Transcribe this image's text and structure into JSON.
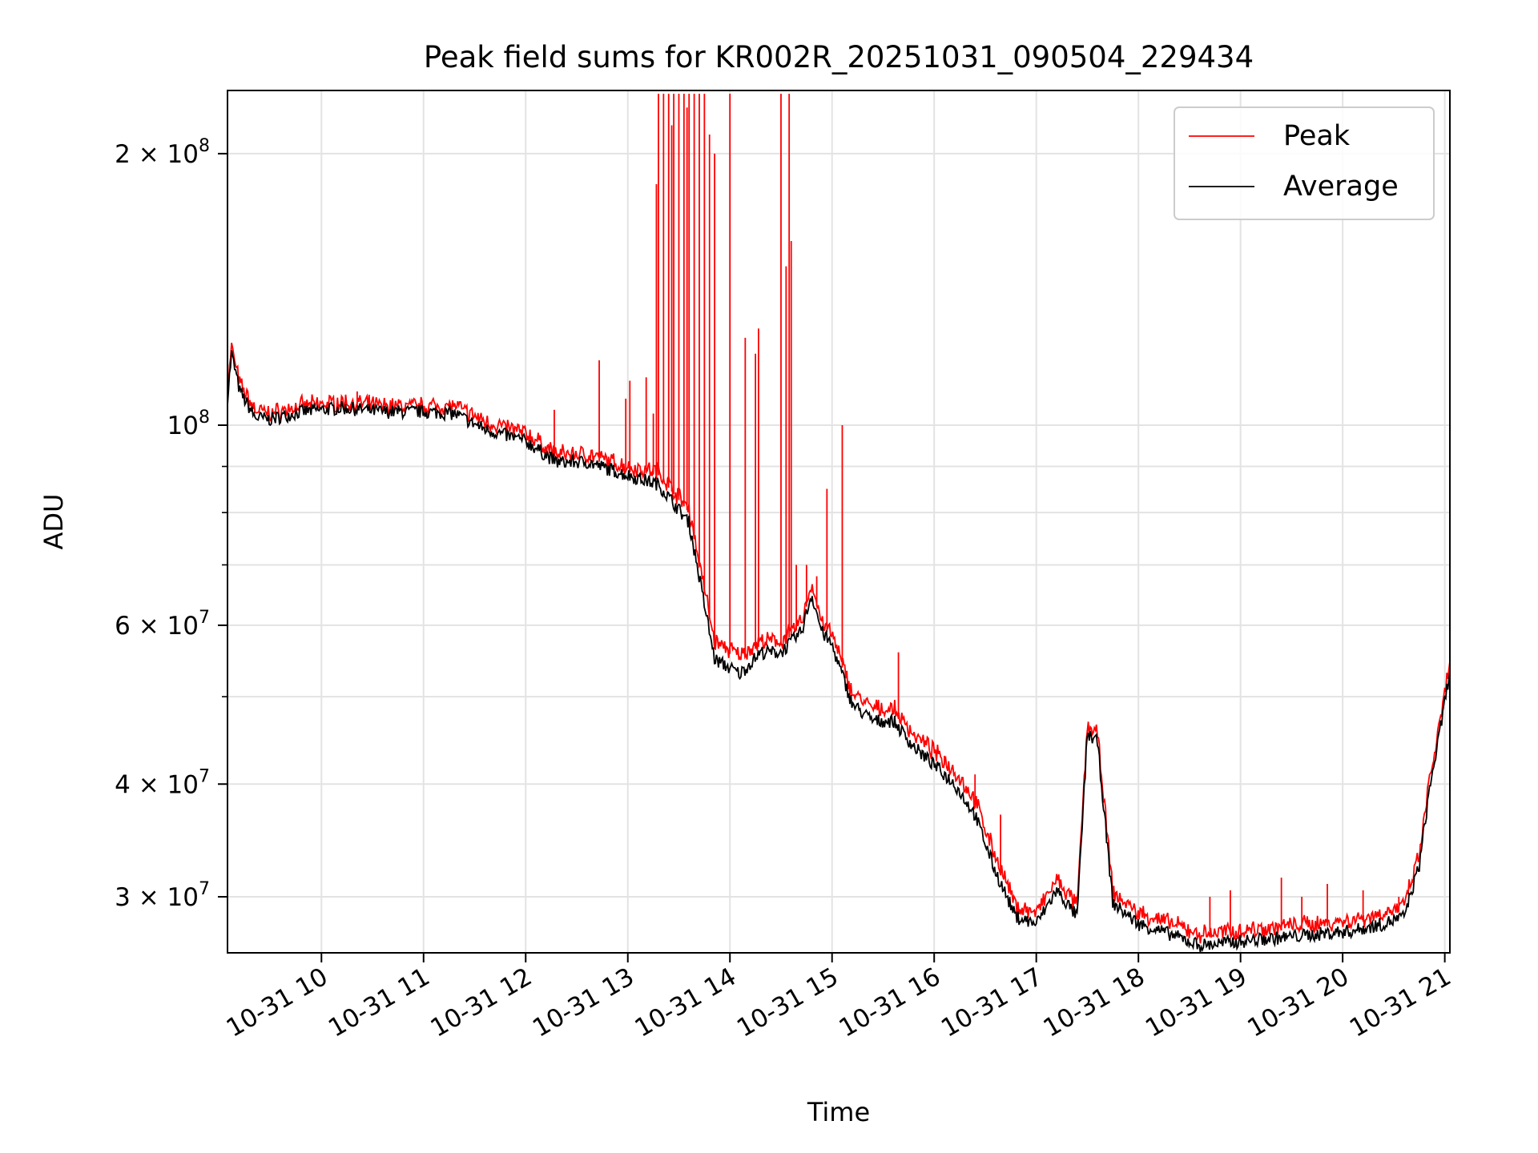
{
  "chart_data": {
    "type": "line",
    "title": "Peak field sums for KR002R_20251031_090504_229434",
    "xlabel": "Time",
    "ylabel": "ADU",
    "yscale": "log",
    "xlim": [
      9.08,
      21.05
    ],
    "ylim": [
      26000000,
      235000000
    ],
    "grid": true,
    "legend_position": "top-right",
    "x_ticks": [
      {
        "value": 10,
        "label": "10-31 10"
      },
      {
        "value": 11,
        "label": "10-31 11"
      },
      {
        "value": 12,
        "label": "10-31 12"
      },
      {
        "value": 13,
        "label": "10-31 13"
      },
      {
        "value": 14,
        "label": "10-31 14"
      },
      {
        "value": 15,
        "label": "10-31 15"
      },
      {
        "value": 16,
        "label": "10-31 16"
      },
      {
        "value": 17,
        "label": "10-31 17"
      },
      {
        "value": 18,
        "label": "10-31 18"
      },
      {
        "value": 19,
        "label": "10-31 19"
      },
      {
        "value": 20,
        "label": "10-31 20"
      },
      {
        "value": 21,
        "label": "10-31 21"
      }
    ],
    "y_ticks": [
      {
        "value": 30000000,
        "mant": "3",
        "exp": "7"
      },
      {
        "value": 40000000,
        "mant": "4",
        "exp": "7"
      },
      {
        "value": 60000000,
        "mant": "6",
        "exp": "7"
      },
      {
        "value": 100000000,
        "mant": "",
        "exp": "8"
      },
      {
        "value": 200000000,
        "mant": "2",
        "exp": "8"
      }
    ],
    "y_minor_ticks": [
      50000000,
      70000000,
      80000000,
      90000000
    ],
    "series": [
      {
        "name": "Peak",
        "color": "#ff0000",
        "x": [
          9.08,
          9.12,
          9.2,
          9.35,
          9.5,
          9.8,
          10.2,
          10.6,
          11,
          11.3,
          11.6,
          12.0,
          12.3,
          12.6,
          13.0,
          13.3,
          13.6,
          13.85,
          14.1,
          14.3,
          14.5,
          14.7,
          14.8,
          14.9,
          15.0,
          15.2,
          15.4,
          15.6,
          15.8,
          16.0,
          16.2,
          16.4,
          16.6,
          16.8,
          17.0,
          17.2,
          17.4,
          17.5,
          17.6,
          17.75,
          18.0,
          18.3,
          18.6,
          18.9,
          19.2,
          19.5,
          19.8,
          20.1,
          20.4,
          20.6,
          20.75,
          20.85,
          20.95,
          21.05
        ],
        "values": [
          108000000,
          121000000,
          110000000,
          103000000,
          102000000,
          104000000,
          105000000,
          104000000,
          104000000,
          104000000,
          100000000,
          97000000,
          92000000,
          92000000,
          89000000,
          88000000,
          80000000,
          57000000,
          55000000,
          57000000,
          57000000,
          60000000,
          66000000,
          60000000,
          58000000,
          50000000,
          48000000,
          48000000,
          45000000,
          43000000,
          41000000,
          38000000,
          33000000,
          29000000,
          28500000,
          31000000,
          29000000,
          46000000,
          45000000,
          30000000,
          28500000,
          27800000,
          27000000,
          27200000,
          27400000,
          27600000,
          27800000,
          28000000,
          28500000,
          29000000,
          33000000,
          40000000,
          46000000,
          54000000
        ]
      },
      {
        "name": "Average",
        "color": "#000000",
        "x": [
          9.08,
          9.12,
          9.2,
          9.35,
          9.5,
          9.8,
          10.2,
          10.6,
          11,
          11.3,
          11.6,
          12.0,
          12.3,
          12.6,
          13.0,
          13.3,
          13.6,
          13.85,
          14.1,
          14.3,
          14.5,
          14.7,
          14.8,
          14.9,
          15.0,
          15.2,
          15.4,
          15.6,
          15.8,
          16.0,
          16.2,
          16.4,
          16.6,
          16.8,
          17.0,
          17.2,
          17.4,
          17.5,
          17.6,
          17.75,
          18.0,
          18.3,
          18.6,
          18.9,
          19.2,
          19.5,
          19.8,
          20.1,
          20.4,
          20.6,
          20.75,
          20.85,
          20.95,
          21.05
        ],
        "values": [
          107000000,
          120000000,
          109000000,
          102000000,
          101500000,
          103500000,
          104500000,
          103500000,
          103500000,
          103000000,
          99000000,
          96000000,
          91000000,
          91000000,
          88000000,
          86000000,
          78000000,
          55000000,
          53000000,
          56000000,
          56000000,
          59000000,
          65000000,
          59000000,
          57000000,
          49000000,
          47000000,
          47000000,
          44000000,
          42000000,
          40000000,
          37000000,
          32000000,
          28500000,
          28000000,
          30500000,
          28500000,
          45500000,
          44500000,
          29500000,
          28000000,
          27300000,
          26500000,
          26700000,
          26900000,
          27100000,
          27300000,
          27500000,
          28000000,
          28500000,
          32500000,
          39500000,
          45500000,
          53500000
        ]
      }
    ],
    "peak_spikes": [
      {
        "x": 13.3,
        "value": 233000000
      },
      {
        "x": 13.35,
        "value": 233000000
      },
      {
        "x": 13.4,
        "value": 233000000
      },
      {
        "x": 13.45,
        "value": 233000000
      },
      {
        "x": 13.5,
        "value": 233000000
      },
      {
        "x": 13.55,
        "value": 233000000
      },
      {
        "x": 13.6,
        "value": 233000000
      },
      {
        "x": 13.65,
        "value": 233000000
      },
      {
        "x": 13.7,
        "value": 233000000
      },
      {
        "x": 13.75,
        "value": 233000000
      },
      {
        "x": 13.8,
        "value": 210000000
      },
      {
        "x": 13.85,
        "value": 200000000
      },
      {
        "x": 13.28,
        "value": 185000000
      },
      {
        "x": 13.43,
        "value": 215000000
      },
      {
        "x": 13.58,
        "value": 225000000
      },
      {
        "x": 14.0,
        "value": 233000000
      },
      {
        "x": 14.15,
        "value": 125000000
      },
      {
        "x": 14.25,
        "value": 120000000
      },
      {
        "x": 14.28,
        "value": 128000000
      },
      {
        "x": 14.5,
        "value": 233000000
      },
      {
        "x": 14.55,
        "value": 150000000
      },
      {
        "x": 14.58,
        "value": 233000000
      },
      {
        "x": 14.6,
        "value": 160000000
      },
      {
        "x": 14.65,
        "value": 70000000
      },
      {
        "x": 14.75,
        "value": 70000000
      },
      {
        "x": 14.85,
        "value": 68000000
      },
      {
        "x": 14.95,
        "value": 85000000
      },
      {
        "x": 15.1,
        "value": 100000000
      },
      {
        "x": 13.02,
        "value": 112000000
      },
      {
        "x": 12.72,
        "value": 118000000
      },
      {
        "x": 12.98,
        "value": 107000000
      },
      {
        "x": 13.18,
        "value": 113000000
      },
      {
        "x": 13.25,
        "value": 103000000
      },
      {
        "x": 10.35,
        "value": 109000000
      },
      {
        "x": 12.28,
        "value": 104000000
      },
      {
        "x": 15.65,
        "value": 56000000
      },
      {
        "x": 16.1,
        "value": 43000000
      },
      {
        "x": 16.4,
        "value": 41000000
      },
      {
        "x": 16.65,
        "value": 37000000
      },
      {
        "x": 18.7,
        "value": 30000000
      },
      {
        "x": 18.9,
        "value": 30500000
      },
      {
        "x": 19.4,
        "value": 31500000
      },
      {
        "x": 19.6,
        "value": 30000000
      },
      {
        "x": 19.85,
        "value": 31000000
      },
      {
        "x": 20.2,
        "value": 30500000
      },
      {
        "x": 20.55,
        "value": 30000000
      }
    ],
    "legend": [
      {
        "label": "Peak",
        "color": "#ff0000"
      },
      {
        "label": "Average",
        "color": "#000000"
      }
    ]
  }
}
